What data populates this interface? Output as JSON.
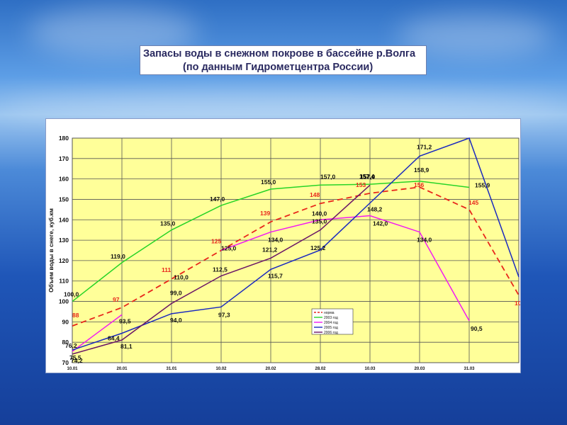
{
  "slide": {
    "title_line1": "Запасы воды в снежном покрове в бассейне р.Волга",
    "title_line2": "(по данным Гидрометцентра России)"
  },
  "colors": {
    "plot_bg": "#FFFF99",
    "grid": "#555555",
    "norm": "#E8261B",
    "y2003": "#27D427",
    "y2004": "#F21AF2",
    "y2005": "#1B2ABF",
    "y2006": "#6B1666"
  },
  "chart_data": {
    "type": "line",
    "title": "",
    "xlabel": "",
    "ylabel": "Объем воды в снеге, куб.км",
    "ylim": [
      70,
      180
    ],
    "yticks": [
      70,
      80,
      90,
      100,
      110,
      120,
      130,
      140,
      150,
      160,
      170,
      180
    ],
    "categories": [
      "10.01",
      "20.01",
      "31.01",
      "10.02",
      "20.02",
      "28.02",
      "10.03",
      "20.03",
      "31.03",
      ""
    ],
    "grid": true,
    "legend_position": "bottom-right",
    "series": [
      {
        "name": "норма",
        "color_key": "norm",
        "dashed": true,
        "values": [
          88,
          97,
          111,
          125,
          139,
          148,
          153,
          156,
          145,
          103
        ],
        "labels": [
          "88",
          "97",
          "111",
          "125",
          "139",
          "148",
          "153",
          "156",
          "145",
          "103"
        ]
      },
      {
        "name": "2003 год",
        "color_key": "y2003",
        "dashed": false,
        "values": [
          100.0,
          119.0,
          135.0,
          147.0,
          155.0,
          157.0,
          157.4,
          158.9,
          155.9,
          null
        ],
        "labels": [
          "100,0",
          "119,0",
          "135,0",
          "147,0",
          "155,0",
          "157,0",
          "157,4",
          "158,9",
          "155,9",
          ""
        ]
      },
      {
        "name": "2004 год",
        "color_key": "y2004",
        "dashed": false,
        "values": [
          75.5,
          93.5,
          null,
          125.0,
          134.0,
          140.0,
          142.0,
          134.0,
          90.5,
          null
        ],
        "labels": [
          "75,5",
          "93,5",
          "",
          "125,0",
          "134,0",
          "140,0",
          "142,0",
          "134,0",
          "90,5",
          ""
        ]
      },
      {
        "name": "2005 год",
        "color_key": "y2005",
        "dashed": false,
        "values": [
          76.2,
          84.4,
          94.0,
          97.3,
          115.7,
          125.2,
          148.2,
          171.2,
          180,
          112
        ],
        "labels": [
          "76,2",
          "84,4",
          "94,0",
          "97,3",
          "115,7",
          "125,2",
          "148,2",
          "171,2",
          "",
          ""
        ]
      },
      {
        "name": "2006 год",
        "color_key": "y2006",
        "dashed": false,
        "values": [
          74.2,
          81.1,
          99.0,
          112.5,
          121.2,
          135.0,
          157.0,
          null,
          null,
          null
        ],
        "labels": [
          "74,2",
          "81,1",
          "99,0",
          "112,5",
          "121,2",
          "135,0",
          "157,0",
          "",
          "",
          ""
        ]
      }
    ],
    "extra_point_labels": [
      {
        "series": "2004 год",
        "x_index": 2,
        "label": "110,0",
        "value": 110.0
      }
    ]
  }
}
